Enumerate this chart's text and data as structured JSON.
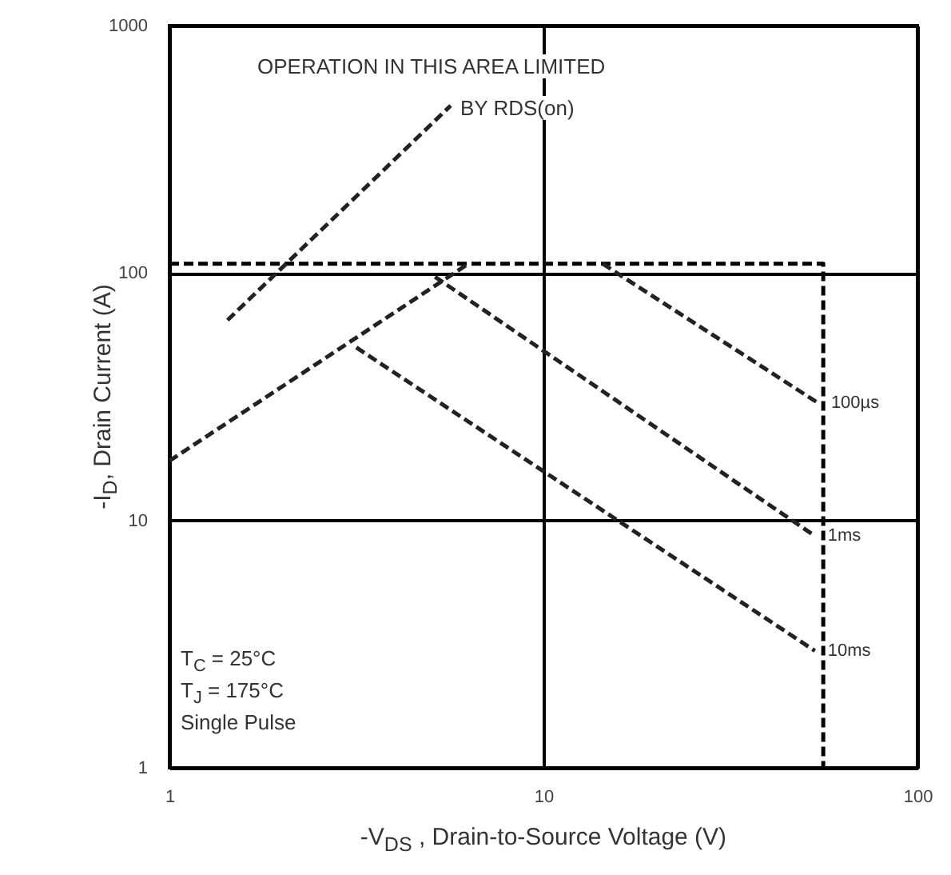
{
  "chart_data": {
    "type": "line",
    "xlabel": "-V$_{DS}$ , Drain-to-Source Voltage (V)",
    "ylabel": "-I$_{D}$, Drain Current (A)",
    "log": "xy",
    "xlim": [
      1,
      100
    ],
    "ylim": [
      1,
      1000
    ],
    "xticks": [
      1,
      10,
      100
    ],
    "yticks": [
      1,
      10,
      100,
      1000
    ],
    "grid": true,
    "line_style": "dashed",
    "series": [
      {
        "color": "#000000",
        "x": [
          1,
          56,
          56
        ],
        "values": [
          109,
          109,
          1
        ]
      },
      {
        "color": "#222222",
        "x": [
          1,
          6.3
        ],
        "values": [
          17.4,
          109
        ]
      },
      {
        "color": "#222222",
        "x": [
          1.43,
          5.65
        ],
        "values": [
          64.5,
          475
        ]
      },
      {
        "name": "100µs",
        "color": "#222222",
        "x": [
          14.4,
          54.3
        ],
        "values": [
          109,
          29.8
        ]
      },
      {
        "name": "1ms",
        "color": "#222222",
        "x": [
          5.13,
          53.2
        ],
        "values": [
          96.5,
          8.65
        ]
      },
      {
        "name": "10ms",
        "color": "#222222",
        "x": [
          3.16,
          53.2
        ],
        "values": [
          50,
          2.97
        ]
      }
    ],
    "annotations": [
      "OPERATION IN THIS AREA LIMITED",
      "BY RDS(on)",
      "T$_{C}$ = 25°C",
      "T$_{J}$ = 175°C",
      "Single Pulse"
    ]
  }
}
